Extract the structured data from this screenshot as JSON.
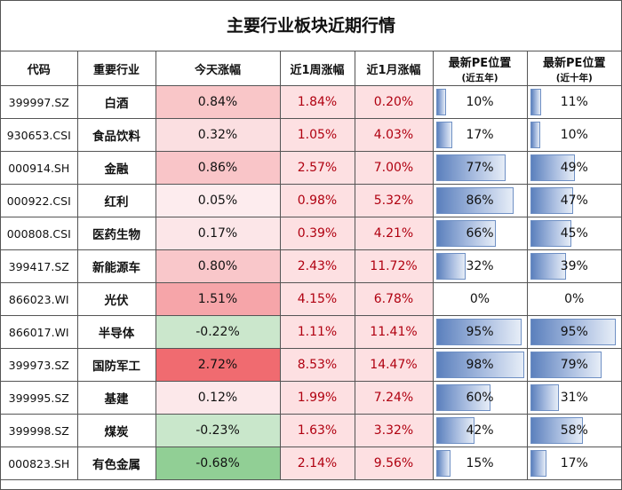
{
  "title": "主要行业板块近期行情",
  "headers": {
    "code": "代码",
    "industry": "重要行业",
    "today": "今天涨幅",
    "week": "近1周涨幅",
    "month": "近1月涨幅",
    "pe5": "最新PE位置",
    "pe5_sub": "(近五年)",
    "pe10": "最新PE位置",
    "pe10_sub": "(近十年)"
  },
  "colors": {
    "positive_strong": "#f06b70",
    "positive_light": "#fde7e9",
    "negative_light": "#e3f1e3",
    "negative_strong": "#91cf95",
    "week_month_bg": "#fde0e2",
    "red_text": "#b00010",
    "pe_bar": "#5b80bd"
  },
  "rows": [
    {
      "code": "399997.SZ",
      "industry": "白酒",
      "today": "0.84%",
      "week": "1.84%",
      "month": "0.20%",
      "pe5": "10%",
      "pe10": "11%"
    },
    {
      "code": "930653.CSI",
      "industry": "食品饮料",
      "today": "0.32%",
      "week": "1.05%",
      "month": "4.03%",
      "pe5": "17%",
      "pe10": "10%"
    },
    {
      "code": "000914.SH",
      "industry": "金融",
      "today": "0.86%",
      "week": "2.57%",
      "month": "7.00%",
      "pe5": "77%",
      "pe10": "49%"
    },
    {
      "code": "000922.CSI",
      "industry": "红利",
      "today": "0.05%",
      "week": "0.98%",
      "month": "5.32%",
      "pe5": "86%",
      "pe10": "47%"
    },
    {
      "code": "000808.CSI",
      "industry": "医药生物",
      "today": "0.17%",
      "week": "0.39%",
      "month": "4.21%",
      "pe5": "66%",
      "pe10": "45%"
    },
    {
      "code": "399417.SZ",
      "industry": "新能源车",
      "today": "0.80%",
      "week": "2.43%",
      "month": "11.72%",
      "pe5": "32%",
      "pe10": "39%"
    },
    {
      "code": "866023.WI",
      "industry": "光伏",
      "today": "1.51%",
      "week": "4.15%",
      "month": "6.78%",
      "pe5": "0%",
      "pe10": "0%"
    },
    {
      "code": "866017.WI",
      "industry": "半导体",
      "today": "-0.22%",
      "week": "1.11%",
      "month": "11.41%",
      "pe5": "95%",
      "pe10": "95%"
    },
    {
      "code": "399973.SZ",
      "industry": "国防军工",
      "today": "2.72%",
      "week": "8.53%",
      "month": "14.47%",
      "pe5": "98%",
      "pe10": "79%"
    },
    {
      "code": "399995.SZ",
      "industry": "基建",
      "today": "0.12%",
      "week": "1.99%",
      "month": "7.24%",
      "pe5": "60%",
      "pe10": "31%"
    },
    {
      "code": "399998.SZ",
      "industry": "煤炭",
      "today": "-0.23%",
      "week": "1.63%",
      "month": "3.32%",
      "pe5": "42%",
      "pe10": "58%"
    },
    {
      "code": "000823.SH",
      "industry": "有色金属",
      "today": "-0.68%",
      "week": "2.14%",
      "month": "9.56%",
      "pe5": "15%",
      "pe10": "17%"
    }
  ]
}
